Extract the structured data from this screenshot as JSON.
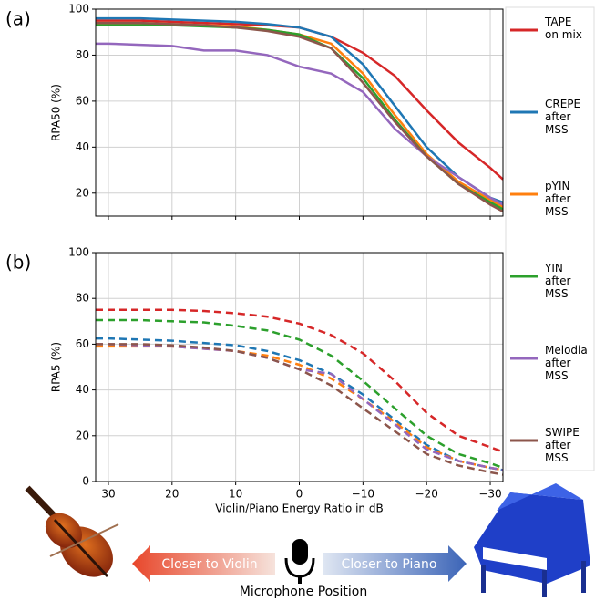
{
  "chart_data": [
    {
      "type": "line",
      "panel_label": "(a)",
      "ylabel": "RPA50 (%)",
      "x": [
        32,
        30,
        25,
        20,
        15,
        10,
        5,
        0,
        -5,
        -10,
        -15,
        -20,
        -25,
        -30,
        -32
      ],
      "xlim": [
        32,
        -32
      ],
      "xticks": [
        30,
        20,
        10,
        0,
        -10,
        -20,
        -30
      ],
      "ylim": [
        10,
        100
      ],
      "yticks": [
        20,
        40,
        60,
        80,
        100
      ],
      "grid": true,
      "dashed": false,
      "series": [
        {
          "name": "TAPE\non mix",
          "color": "#d62728",
          "values": [
            95,
            95,
            95,
            94.5,
            94,
            93.5,
            93,
            92,
            88,
            81,
            71,
            56,
            42,
            31,
            26
          ]
        },
        {
          "name": "CREPE\nafter\nMSS",
          "color": "#1f77b4",
          "values": [
            96,
            96,
            96,
            95.5,
            95,
            94.5,
            93.5,
            92,
            88,
            76,
            58,
            40,
            27,
            18,
            16
          ]
        },
        {
          "name": "pYIN\nafter\nMSS",
          "color": "#ff7f0e",
          "values": [
            94,
            94,
            94,
            93.5,
            93,
            92.5,
            91,
            89,
            85,
            72,
            54,
            37,
            25,
            17,
            14
          ]
        },
        {
          "name": "YIN\nafter\nMSS",
          "color": "#2ca02c",
          "values": [
            93,
            93,
            93,
            93,
            92.5,
            92,
            91,
            89,
            83,
            70,
            52,
            36,
            24,
            16,
            13
          ]
        },
        {
          "name": "Melodia\nafter\nMSS",
          "color": "#9467bd",
          "values": [
            85,
            85,
            84.5,
            84,
            82,
            82,
            80,
            75,
            72,
            64,
            48,
            36,
            27,
            18,
            15
          ]
        },
        {
          "name": "SWIPE\nafter\nMSS",
          "color": "#8c564b",
          "values": [
            94,
            94,
            94,
            93.5,
            93,
            92,
            90.5,
            88,
            83,
            68,
            51,
            36,
            24,
            15,
            12
          ]
        }
      ]
    },
    {
      "type": "line",
      "panel_label": "(b)",
      "ylabel": "RPA5 (%)",
      "xlabel": "Violin/Piano Energy Ratio in dB",
      "x": [
        32,
        30,
        25,
        20,
        15,
        10,
        5,
        0,
        -5,
        -10,
        -15,
        -20,
        -25,
        -30,
        -32
      ],
      "xlim": [
        32,
        -32
      ],
      "xticks": [
        30,
        20,
        10,
        0,
        {
          "value": -10,
          "label": "−10"
        },
        {
          "value": -20,
          "label": "−20"
        },
        {
          "value": -30,
          "label": "−30"
        }
      ],
      "ylim": [
        0,
        100
      ],
      "yticks": [
        0,
        20,
        40,
        60,
        80,
        100
      ],
      "grid": true,
      "dashed": true,
      "series": [
        {
          "color": "#d62728",
          "values": [
            75,
            75,
            75,
            75,
            74.5,
            73.5,
            72,
            69,
            64,
            56,
            44,
            30,
            20,
            15,
            13
          ]
        },
        {
          "color": "#1f77b4",
          "values": [
            62.5,
            62.5,
            62,
            61.5,
            60.5,
            59.5,
            57,
            53,
            47,
            38,
            27,
            16,
            9,
            6,
            5
          ]
        },
        {
          "color": "#ff7f0e",
          "values": [
            59,
            59,
            59,
            59,
            58,
            57,
            55,
            51,
            45,
            36,
            26,
            15,
            9,
            6,
            5
          ]
        },
        {
          "color": "#2ca02c",
          "values": [
            70.5,
            70.5,
            70.5,
            70,
            69.5,
            68,
            66,
            62,
            55,
            44,
            32,
            20,
            12,
            8,
            6
          ]
        },
        {
          "color": "#9467bd",
          "values": [
            60,
            60,
            59.5,
            59,
            58,
            57,
            54,
            49,
            47,
            36,
            25,
            14,
            9,
            6,
            5
          ]
        },
        {
          "color": "#8c564b",
          "values": [
            60,
            60,
            60,
            59.5,
            58.5,
            57,
            54,
            49,
            42,
            32,
            22,
            12,
            7,
            4,
            3
          ]
        }
      ]
    }
  ],
  "bottom": {
    "left_arrow": "Closer to Violin",
    "right_arrow": "Closer to Piano",
    "label": "Microphone Position"
  }
}
